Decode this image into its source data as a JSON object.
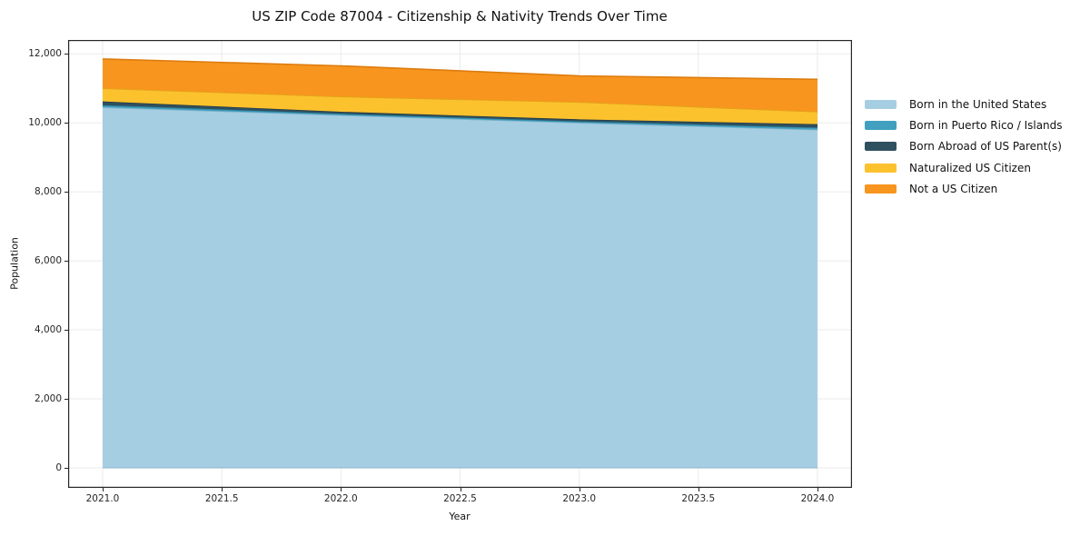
{
  "chart_data": {
    "type": "area",
    "stacked": true,
    "title": "US ZIP Code 87004 - Citizenship & Nativity Trends Over Time",
    "xlabel": "Year",
    "ylabel": "Population",
    "x": [
      2021,
      2022,
      2023,
      2024
    ],
    "series": [
      {
        "name": "Born in the United States",
        "color": "#a6cee3",
        "edge": "#85b4cc",
        "values": [
          10450,
          10220,
          10000,
          9800
        ]
      },
      {
        "name": "Born in Puerto Rico / Islands",
        "color": "#41a0bf",
        "edge": "#2f87a5",
        "values": [
          60,
          40,
          40,
          60
        ]
      },
      {
        "name": "Born Abroad of US Parent(s)",
        "color": "#2f505f",
        "edge": "#223c48",
        "values": [
          110,
          60,
          60,
          100
        ]
      },
      {
        "name": "Naturalized US Citizen",
        "color": "#fcc22d",
        "edge": "#e0a51a",
        "values": [
          380,
          440,
          500,
          360
        ]
      },
      {
        "name": "Not a US Citizen",
        "color": "#f8951e",
        "edge": "#dd7c0e",
        "values": [
          850,
          890,
          760,
          940
        ]
      }
    ],
    "totals": [
      11850,
      11650,
      11360,
      11260
    ],
    "xlim": [
      2020.855,
      2024.145
    ],
    "ylim": [
      -580,
      12400
    ],
    "xticks": [
      2021.0,
      2021.5,
      2022.0,
      2022.5,
      2023.0,
      2023.5,
      2024.0
    ],
    "xtick_labels": [
      "2021.0",
      "2021.5",
      "2022.0",
      "2022.5",
      "2023.0",
      "2023.5",
      "2024.0"
    ],
    "yticks": [
      0,
      2000,
      4000,
      6000,
      8000,
      10000,
      12000
    ],
    "ytick_labels": [
      "0",
      "2,000",
      "4,000",
      "6,000",
      "8,000",
      "10,000",
      "12,000"
    ],
    "grid": true,
    "grid_color": "#ebebeb",
    "spine_color": "#262626",
    "legend_position": "right of plot"
  }
}
